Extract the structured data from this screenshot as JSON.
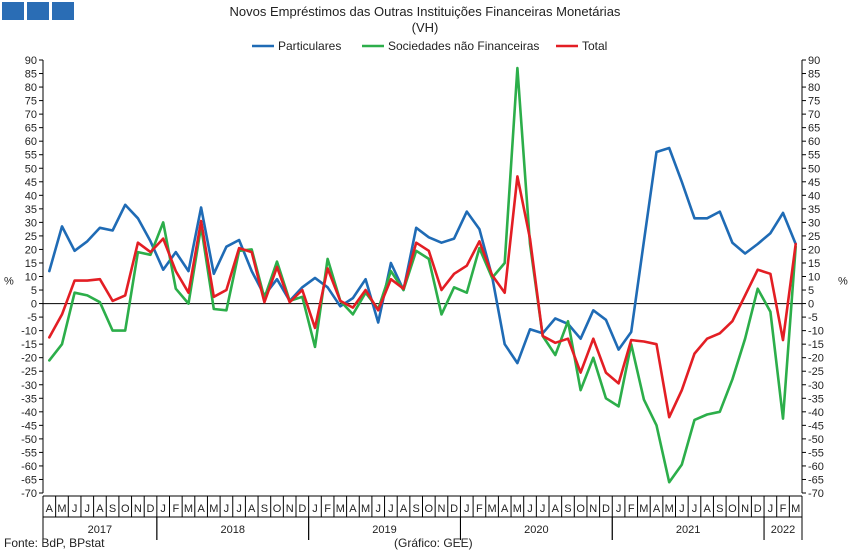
{
  "header": {
    "title": "Novos Empréstimos das Outras Instituições Financeiras Monetárias",
    "subtitle": "(VH)"
  },
  "footer": {
    "source": "Fonte: BdP, BPstat",
    "credit": "(Gráfico: GEE)"
  },
  "colors": {
    "brand": "#2a6db5"
  },
  "chart_data": {
    "type": "line",
    "ylim": [
      -70,
      90
    ],
    "ytick_step": 5,
    "ytick_suffix": "%",
    "ylabel_left": "%",
    "ylabel_right": "%",
    "legend_position": "top-center",
    "grid": false,
    "x": [
      "A",
      "M",
      "J",
      "J",
      "A",
      "S",
      "O",
      "N",
      "D",
      "J",
      "F",
      "M",
      "A",
      "M",
      "J",
      "J",
      "A",
      "S",
      "O",
      "N",
      "D",
      "J",
      "F",
      "M",
      "A",
      "M",
      "J",
      "J",
      "A",
      "S",
      "O",
      "N",
      "D",
      "J",
      "F",
      "M",
      "A",
      "M",
      "J",
      "J",
      "A",
      "S",
      "O",
      "N",
      "D",
      "J",
      "F",
      "M",
      "A",
      "M",
      "J",
      "J",
      "A",
      "S",
      "O",
      "N",
      "D",
      "J",
      "F",
      "M"
    ],
    "year_groups": [
      {
        "label": "2017",
        "start": 0,
        "end": 8
      },
      {
        "label": "2018",
        "start": 9,
        "end": 20
      },
      {
        "label": "2019",
        "start": 21,
        "end": 32
      },
      {
        "label": "2020",
        "start": 33,
        "end": 44
      },
      {
        "label": "2021",
        "start": 45,
        "end": 56
      },
      {
        "label": "2022",
        "start": 57,
        "end": 59
      }
    ],
    "series": [
      {
        "name": "Particulares",
        "color": "#1f6bb5",
        "values": [
          12,
          28.5,
          19.5,
          23,
          28,
          27,
          36.5,
          31.5,
          23,
          12.5,
          19,
          12,
          35.5,
          11,
          21,
          23.5,
          12,
          3,
          9,
          1,
          6,
          9.5,
          6,
          -1,
          2,
          9,
          -7,
          15,
          5,
          28,
          24.5,
          22.5,
          24,
          34,
          27.5,
          10,
          -15,
          -22,
          -9.5,
          -11,
          -5.5,
          -7.5,
          -13,
          -2.5,
          -6,
          -17,
          -10.5,
          23,
          56,
          57.5,
          45,
          31.5,
          31.5,
          34,
          22.5,
          18.5,
          22,
          26,
          33.5,
          22
        ]
      },
      {
        "name": "Sociedades não Financeiras",
        "color": "#2cae4a",
        "values": [
          -21,
          -15,
          4,
          3,
          0.5,
          -10,
          -10,
          19,
          18,
          30,
          5.5,
          0,
          28.5,
          -2,
          -2.5,
          19.5,
          20,
          2,
          15.5,
          1,
          2.5,
          -16,
          16.5,
          1,
          -4,
          4,
          -2,
          12,
          5,
          19.5,
          16.5,
          -4,
          6,
          4,
          20.5,
          9.5,
          15,
          87,
          22,
          -12,
          -19,
          -6.5,
          -32,
          -20,
          -35,
          -38,
          -15,
          -35.5,
          -45,
          -66,
          -59.5,
          -43,
          -41,
          -40,
          -28,
          -13,
          5.5,
          -3,
          -42.5,
          21
        ]
      },
      {
        "name": "Total",
        "color": "#e31e24",
        "values": [
          -12.5,
          -4,
          8.5,
          8.5,
          9,
          1,
          3,
          22.5,
          19,
          24,
          12,
          4,
          30.5,
          2.5,
          5,
          20.5,
          19,
          0.5,
          13.5,
          0.5,
          5,
          -9,
          13,
          1,
          -1.5,
          5,
          -2.5,
          9,
          5.5,
          22.5,
          19.5,
          5,
          11,
          14,
          23,
          10.5,
          4,
          47,
          24,
          -12,
          -14.5,
          -13,
          -25.5,
          -13,
          -25.5,
          -29.5,
          -13.5,
          -14,
          -15,
          -42,
          -32,
          -18.5,
          -13,
          -11,
          -6.5,
          3,
          12.5,
          11,
          -13.5,
          22
        ]
      }
    ]
  }
}
